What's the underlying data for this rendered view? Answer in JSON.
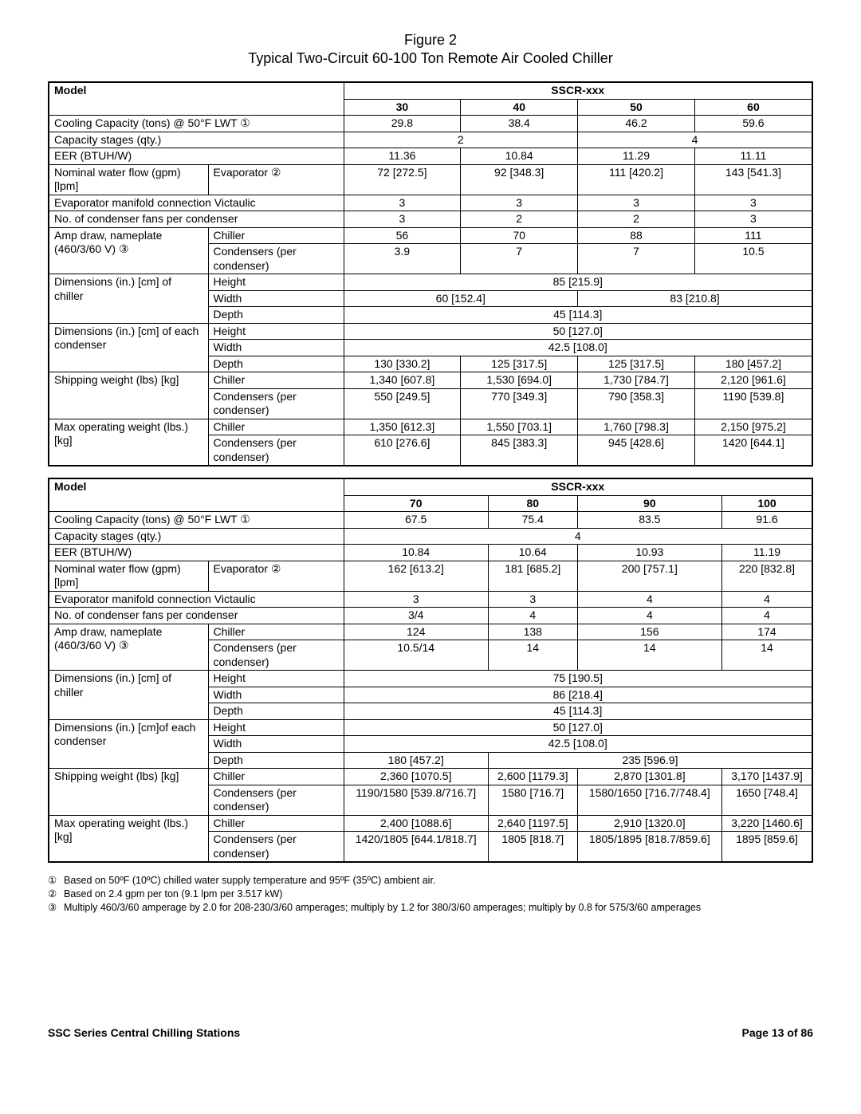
{
  "figure": {
    "label": "Figure 2",
    "title": "Typical Two-Circuit 60-100 Ton Remote Air Cooled Chiller"
  },
  "header": {
    "model": "Model",
    "series": "SSCR-xxx"
  },
  "rowLabels": {
    "cooling": "Cooling Capacity (tons) @ 50°F LWT ①",
    "stages": "Capacity stages (qty.)",
    "eer": "EER (BTUH/W)",
    "flow1": "Nominal water flow (gpm) [lpm]",
    "evap": "Evaporator ②",
    "manifold": "Evaporator manifold connection Victaulic",
    "fans": "No. of condenser fans per condenser",
    "amp": "Amp draw, nameplate (460/3/60 V) ③",
    "chiller": "Chiller",
    "condPer": "Condensers (per condenser)",
    "dimChiller": "Dimensions (in.) [cm] of chiller",
    "dimCond": "Dimensions (in.) [cm] of each condenser",
    "dimCond2": "Dimensions (in.)  [cm]of each condenser",
    "height": "Height",
    "width": "Width",
    "depth": "Depth",
    "shipW": "Shipping weight (lbs) [kg]",
    "maxW": "Max operating weight (lbs.) [kg]"
  },
  "t1": {
    "cols": [
      "30",
      "40",
      "50",
      "60"
    ],
    "cooling": [
      "29.8",
      "38.4",
      "46.2",
      "59.6"
    ],
    "stages": {
      "a": "2",
      "b": "4"
    },
    "eer": [
      "11.36",
      "10.84",
      "11.29",
      "11.11"
    ],
    "flow": [
      "72 [272.5]",
      "92 [348.3]",
      "111 [420.2]",
      "143 [541.3]"
    ],
    "manifold": [
      "3",
      "3",
      "3",
      "3"
    ],
    "fans": [
      "3",
      "2",
      "2",
      "3"
    ],
    "ampCh": [
      "56",
      "70",
      "88",
      "111"
    ],
    "ampCo": [
      "3.9",
      "7",
      "7",
      "10.5"
    ],
    "chH": "85 [215.9]",
    "chW": {
      "a": "60 [152.4]",
      "b": "83 [210.8]"
    },
    "chD": "45 [114.3]",
    "coH": "50 [127.0]",
    "coW": "42.5 [108.0]",
    "coD": [
      "130 [330.2]",
      "125 [317.5]",
      "125 [317.5]",
      "180 [457.2]"
    ],
    "shipCh": [
      "1,340 [607.8]",
      "1,530 [694.0]",
      "1,730 [784.7]",
      "2,120 [961.6]"
    ],
    "shipCo": [
      "550 [249.5]",
      "770 [349.3]",
      "790 [358.3]",
      "1190 [539.8]"
    ],
    "maxCh": [
      "1,350 [612.3]",
      "1,550 [703.1]",
      "1,760 [798.3]",
      "2,150 [975.2]"
    ],
    "maxCo": [
      "610 [276.6]",
      "845 [383.3]",
      "945 [428.6]",
      "1420 [644.1]"
    ]
  },
  "t2": {
    "cols": [
      "70",
      "80",
      "90",
      "100"
    ],
    "cooling": [
      "67.5",
      "75.4",
      "83.5",
      "91.6"
    ],
    "stages": "4",
    "eer": [
      "10.84",
      "10.64",
      "10.93",
      "11.19"
    ],
    "flow": [
      "162 [613.2]",
      "181 [685.2]",
      "200 [757.1]",
      "220 [832.8]"
    ],
    "manifold": [
      "3",
      "3",
      "4",
      "4"
    ],
    "fans": [
      "3/4",
      "4",
      "4",
      "4"
    ],
    "ampCh": [
      "124",
      "138",
      "156",
      "174"
    ],
    "ampCo": [
      "10.5/14",
      "14",
      "14",
      "14"
    ],
    "chH": "75 [190.5]",
    "chW": "86 [218.4]",
    "chD": "45 [114.3]",
    "coH": "50 [127.0]",
    "coW": "42.5 [108.0]",
    "coD": {
      "a": "180 [457.2]",
      "b": "235 [596.9]"
    },
    "shipCh": [
      "2,360 [1070.5]",
      "2,600 [1179.3]",
      "2,870 [1301.8]",
      "3,170 [1437.9]"
    ],
    "shipCo": [
      "1190/1580 [539.8/716.7]",
      "1580 [716.7]",
      "1580/1650 [716.7/748.4]",
      "1650 [748.4]"
    ],
    "maxCh": [
      "2,400 [1088.6]",
      "2,640 [1197.5]",
      "2,910 [1320.0]",
      "3,220 [1460.6]"
    ],
    "maxCo": [
      "1420/1805 [644.1/818.7]",
      "1805 [818.7]",
      "1805/1895 [818.7/859.6]",
      "1895 [859.6]"
    ]
  },
  "notes": {
    "n1s": "①",
    "n1": "Based on 50ºF (10ºC) chilled water supply temperature and 95ºF (35ºC) ambient air.",
    "n2s": "②",
    "n2": "Based on 2.4 gpm per ton (9.1 lpm per 3.517 kW)",
    "n3s": "③",
    "n3": "Multiply 460/3/60 amperage by 2.0 for 208-230/3/60 amperages; multiply by 1.2 for 380/3/60 amperages; multiply by 0.8 for 575/3/60 amperages"
  },
  "footer": {
    "left": "SSC Series Central Chilling Stations",
    "right": "Page 13 of 86"
  }
}
